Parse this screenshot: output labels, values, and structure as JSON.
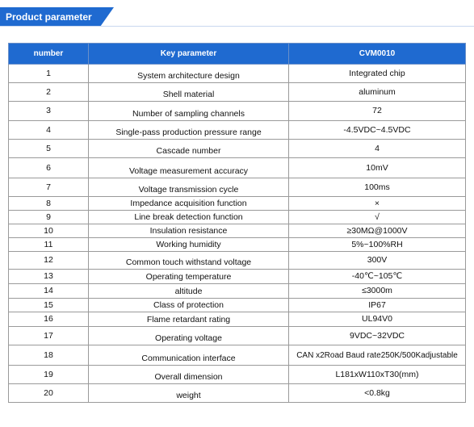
{
  "header": {
    "title": "Product parameter"
  },
  "table": {
    "columns": [
      "number",
      "Key parameter",
      "CVM0010"
    ],
    "rows": [
      {
        "number": "1",
        "param": "System architecture design",
        "value": "Integrated chip"
      },
      {
        "number": "2",
        "param": "Shell material",
        "value": "aluminum"
      },
      {
        "number": "3",
        "param": "Number of sampling channels",
        "value": "72"
      },
      {
        "number": "4",
        "param": "Single-pass production pressure range",
        "value": "-4.5VDC~4.5VDC"
      },
      {
        "number": "5",
        "param": "Cascade number",
        "value": "4"
      },
      {
        "number": "6",
        "param": "Voltage measurement accuracy",
        "value": "10mV"
      },
      {
        "number": "7",
        "param": "Voltage transmission cycle",
        "value": "100ms"
      },
      {
        "number": "8",
        "param": "Impedance acquisition function",
        "value": "×"
      },
      {
        "number": "9",
        "param": "Line break detection function",
        "value": "√"
      },
      {
        "number": "10",
        "param": "Insulation resistance",
        "value": "≥30MΩ@1000V"
      },
      {
        "number": "11",
        "param": "Working humidity",
        "value": "5%~100%RH"
      },
      {
        "number": "12",
        "param": "Common touch withstand voltage",
        "value": "300V"
      },
      {
        "number": "13",
        "param": "Operating temperature",
        "value": "-40℃~105℃"
      },
      {
        "number": "14",
        "param": "altitude",
        "value": "≤3000m"
      },
      {
        "number": "15",
        "param": "Class of protection",
        "value": "IP67"
      },
      {
        "number": "16",
        "param": "Flame retardant rating",
        "value": "UL94V0"
      },
      {
        "number": "17",
        "param": "Operating voltage",
        "value": "9VDC~32VDC"
      },
      {
        "number": "18",
        "param": "Communication interface",
        "value": "CAN x2Road Baud rate250K/500Kadjustable"
      },
      {
        "number": "19",
        "param": "Overall dimension",
        "value": "L181xW110xT30(mm)"
      },
      {
        "number": "20",
        "param": "weight",
        "value": "<0.8kg"
      }
    ]
  }
}
